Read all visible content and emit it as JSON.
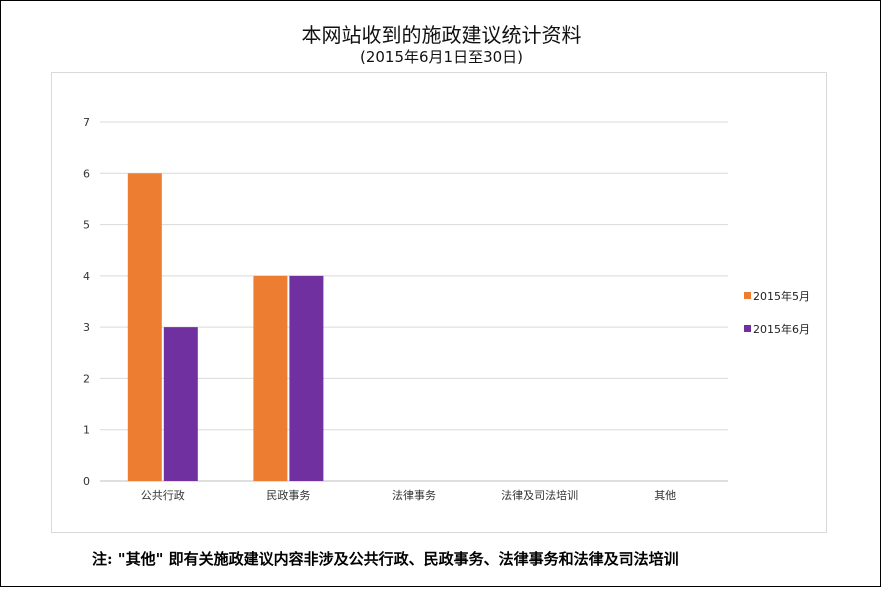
{
  "chart_data": {
    "type": "bar",
    "title": "本网站收到的施政建议统计资料",
    "subtitle": "(2015年6月1日至30日)",
    "categories": [
      "公共行政",
      "民政事务",
      "法律事务",
      "法律及司法培训",
      "其他"
    ],
    "series": [
      {
        "name": "2015年5月",
        "color": "#ed7d31",
        "values": [
          6,
          4,
          0,
          0,
          0
        ]
      },
      {
        "name": "2015年6月",
        "color": "#7030a0",
        "values": [
          3,
          4,
          0,
          0,
          0
        ]
      }
    ],
    "y_ticks": [
      "0",
      "1",
      "2",
      "3",
      "4",
      "5",
      "6",
      "7"
    ],
    "ylim": [
      0,
      7
    ],
    "grid": true,
    "legend_position": "right"
  },
  "note": "注: \"其他\" 即有关施政建议内容非涉及公共行政、民政事务、法律事务和法律及司法培训"
}
